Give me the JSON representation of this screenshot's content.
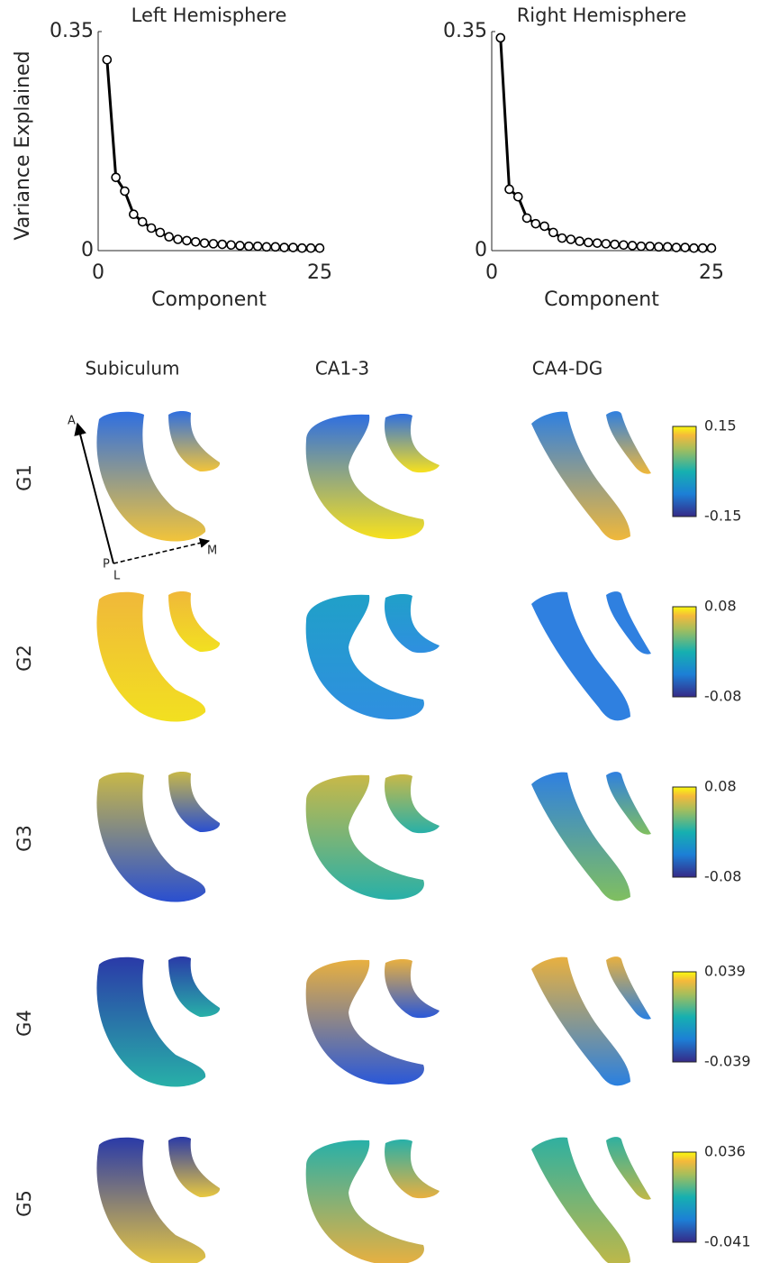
{
  "chart_data": [
    {
      "type": "line",
      "title": "Left Hemisphere",
      "y_label": "Variance Explained",
      "x_label": "Component",
      "x": [
        1,
        2,
        3,
        4,
        5,
        6,
        7,
        8,
        9,
        10,
        11,
        12,
        13,
        14,
        15,
        16,
        17,
        18,
        19,
        20,
        21,
        22,
        23,
        24,
        25
      ],
      "values": [
        0.305,
        0.117,
        0.095,
        0.058,
        0.046,
        0.036,
        0.029,
        0.022,
        0.018,
        0.016,
        0.014,
        0.012,
        0.011,
        0.01,
        0.009,
        0.008,
        0.007,
        0.007,
        0.006,
        0.006,
        0.005,
        0.005,
        0.004,
        0.004,
        0.004
      ],
      "color": "#000000",
      "xlim": [
        0,
        25
      ],
      "xticks": [
        0,
        25
      ],
      "ylim": [
        0,
        0.35
      ],
      "yticks": [
        0,
        0.35
      ]
    },
    {
      "type": "line",
      "title": "Right Hemisphere",
      "x_label": "Component",
      "x": [
        1,
        2,
        3,
        4,
        5,
        6,
        7,
        8,
        9,
        10,
        11,
        12,
        13,
        14,
        15,
        16,
        17,
        18,
        19,
        20,
        21,
        22,
        23,
        24,
        25
      ],
      "values": [
        0.34,
        0.098,
        0.086,
        0.052,
        0.043,
        0.039,
        0.029,
        0.02,
        0.018,
        0.015,
        0.013,
        0.012,
        0.011,
        0.01,
        0.009,
        0.008,
        0.007,
        0.007,
        0.006,
        0.006,
        0.005,
        0.005,
        0.004,
        0.004,
        0.004
      ],
      "color": "#000000",
      "xlim": [
        0,
        25
      ],
      "xticks": [
        0,
        25
      ],
      "ylim": [
        0,
        0.35
      ],
      "yticks": [
        0,
        0.35
      ]
    }
  ],
  "panels": {
    "columns": [
      "Subiculum",
      "CA1-3",
      "CA4-DG"
    ],
    "orientation": {
      "anterior": "A",
      "posterior": "P",
      "lateral": "L",
      "medial": "M"
    },
    "rows": [
      {
        "label": "G1",
        "colorbar": {
          "max": 0.15,
          "min": -0.15
        }
      },
      {
        "label": "G2",
        "colorbar": {
          "max": 0.08,
          "min": -0.08
        }
      },
      {
        "label": "G3",
        "colorbar": {
          "max": 0.08,
          "min": -0.08
        }
      },
      {
        "label": "G4",
        "colorbar": {
          "max": 0.039,
          "min": -0.039
        }
      },
      {
        "label": "G5",
        "colorbar": {
          "max": 0.036,
          "min": -0.041
        }
      }
    ]
  }
}
